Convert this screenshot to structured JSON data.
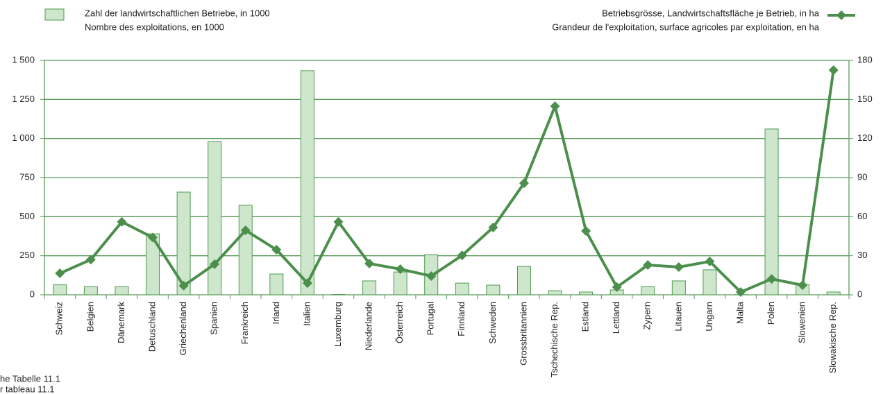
{
  "chart_data": {
    "type": "bar_line",
    "legend": {
      "bars_de": "Zahl der landwirtschaftlichen Betriebe, in 1000",
      "bars_fr": "Nombre des exploitations, en 1000",
      "line_de": "Betriebsgrösse, Landwirtschaftsfläche je Betrieb, in ha",
      "line_fr": "Grandeur de l'exploitation, surface agricoles par exploitation, en ha"
    },
    "notes": [
      "he Tabelle 11.1",
      "r tableau 11.1"
    ],
    "categories": [
      "Schweiz",
      "Belgien",
      "Dänemark",
      "Detuschland",
      "Griechenland",
      "Spanien",
      "Frankreich",
      "Irland",
      "Italien",
      "Luxemburg",
      "Niederlande",
      "Österreich",
      "Portugal",
      "Finnland",
      "Schweden",
      "Grossbritannien",
      "Tschechische Rep.",
      "Estland",
      "Lettland",
      "Zypern",
      "Litauen",
      "Ungarn",
      "Malta",
      "Polen",
      "Slowenien",
      "Slowakische Rep."
    ],
    "series": [
      {
        "name": "Zahl der landwirtschaftlichen Betriebe, in 1000",
        "color": "#cde6cc",
        "values": [
          64,
          52,
          52,
          390,
          657,
          981,
          573,
          133,
          1434,
          2,
          89,
          146,
          257,
          75,
          62,
          182,
          26,
          18,
          31,
          52,
          89,
          160,
          1,
          1061,
          66,
          18
        ]
      },
      {
        "name": "Betriebsgrösse, Landwirtschaftsfläche je Betrieb, in ha",
        "color": "#4c8f4c",
        "axis": "y2",
        "values": [
          16.5,
          27,
          56,
          44,
          7,
          23.5,
          49.5,
          34.6,
          9,
          56,
          24,
          19.7,
          14.4,
          30.3,
          51.7,
          85.7,
          144.8,
          49,
          5.9,
          22.9,
          21.3,
          25.6,
          2.1,
          12.2,
          7.4,
          172.5
        ]
      }
    ],
    "ylim": [
      0,
      1500
    ],
    "yticks": [
      0,
      250,
      500,
      750,
      {
        "value": 1000,
        "label": "1 000"
      },
      {
        "value": 1250,
        "label": "1 250"
      },
      {
        "value": 1500,
        "label": "1 500"
      }
    ],
    "y2lim": [
      0,
      180
    ],
    "y2ticks": [
      0,
      30,
      60,
      90,
      120,
      150,
      180
    ],
    "grid": true
  }
}
